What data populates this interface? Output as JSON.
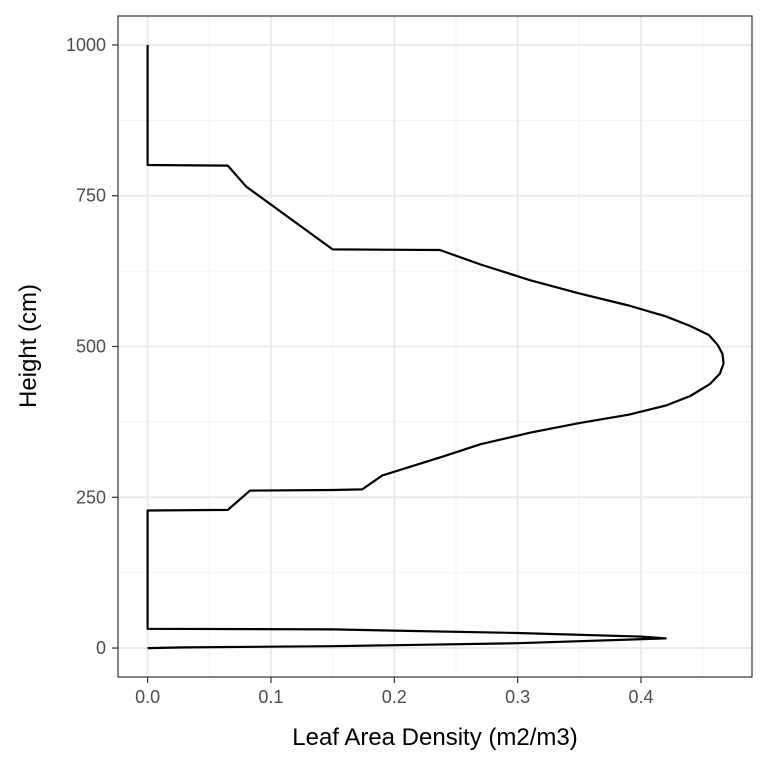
{
  "chart_data": {
    "type": "line",
    "title": "",
    "xlabel": "Leaf Area Density (m2/m3)",
    "ylabel": "Height (cm)",
    "xlim": [
      -0.024,
      0.49
    ],
    "ylim": [
      -48,
      1048
    ],
    "x_ticks": [
      0.0,
      0.1,
      0.2,
      0.3,
      0.4
    ],
    "x_tick_labels": [
      "0.0",
      "0.1",
      "0.2",
      "0.3",
      "0.4"
    ],
    "y_ticks": [
      0,
      250,
      500,
      750,
      1000
    ],
    "y_tick_labels": [
      "0",
      "250",
      "500",
      "750",
      "1000"
    ],
    "grid": true,
    "legend": "none",
    "colors": {
      "line": "#000000",
      "grid_major": "#ebebeb",
      "grid_minor": "#f2f2f2",
      "panel_border": "#333333",
      "tick_text": "#4d4d4d"
    },
    "series": [
      {
        "x": [
          0.0,
          0.0,
          0.065,
          0.08,
          0.15,
          0.237,
          0.27,
          0.31,
          0.35,
          0.39,
          0.42,
          0.44,
          0.455,
          0.462,
          0.466,
          0.467,
          0.464,
          0.456,
          0.44,
          0.42,
          0.39,
          0.35,
          0.31,
          0.27,
          0.24,
          0.215,
          0.19,
          0.174,
          0.15,
          0.083,
          0.065,
          0.0,
          0.0,
          0.15,
          0.3,
          0.4,
          0.42,
          0.3,
          0.15,
          0.03,
          0.0
        ],
        "y": [
          1000,
          801,
          800,
          765,
          661,
          660,
          636,
          610,
          588,
          568,
          550,
          534,
          519,
          503,
          488,
          472,
          455,
          438,
          418,
          402,
          387,
          373,
          357,
          338,
          318,
          302,
          286,
          263,
          262,
          261,
          229,
          228,
          32,
          31,
          25,
          19,
          16,
          8,
          3,
          1,
          0
        ]
      }
    ]
  }
}
